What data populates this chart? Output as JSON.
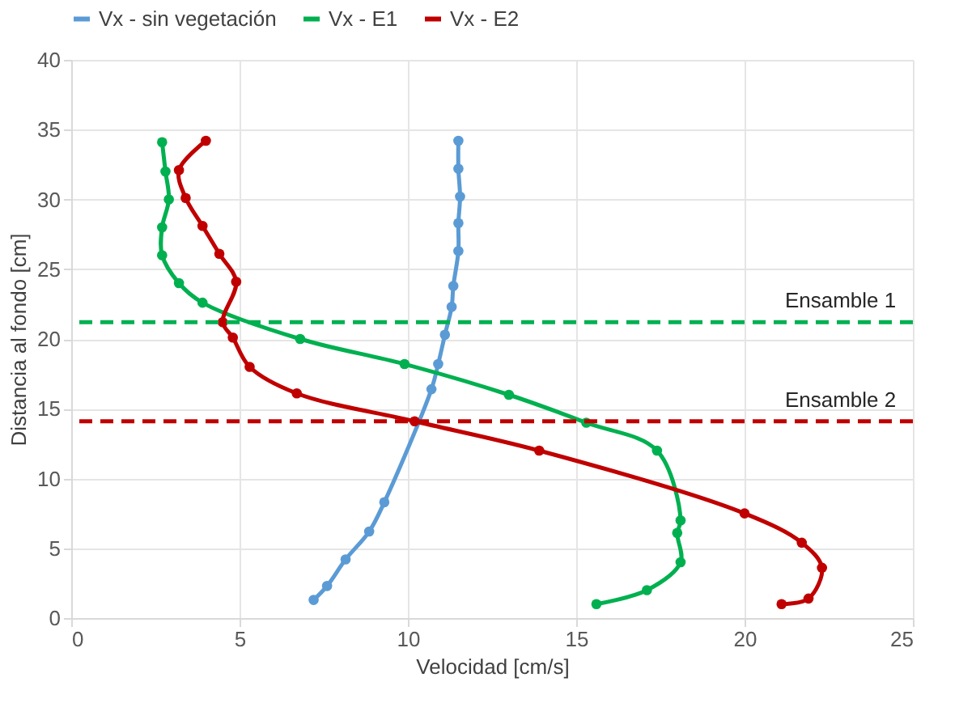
{
  "chart_data": {
    "type": "line",
    "xlabel": "Velocidad [cm/s]",
    "ylabel": "Distancia al fondo [cm]",
    "xlim": [
      0,
      25
    ],
    "xticks": [
      0,
      5,
      10,
      15,
      20,
      25
    ],
    "ylim": [
      0,
      40
    ],
    "yticks": [
      0,
      5,
      10,
      15,
      20,
      25,
      30,
      35,
      40
    ],
    "grid": true,
    "legend": "top",
    "marker": "circle",
    "line_style": "solid",
    "series": [
      {
        "name": "Vx - sin vegetación",
        "color": "#5b9bd5",
        "x": [
          11.5,
          11.5,
          11.55,
          11.5,
          11.5,
          11.35,
          11.3,
          11.1,
          10.9,
          10.7,
          9.3,
          8.85,
          8.15,
          7.6,
          7.2
        ],
        "values": [
          34.2,
          32.2,
          30.2,
          28.3,
          26.3,
          23.8,
          22.3,
          20.3,
          18.2,
          16.4,
          8.3,
          6.2,
          4.2,
          2.3,
          1.3
        ]
      },
      {
        "name": "Vx - E1",
        "color": "#00b050",
        "x": [
          2.7,
          2.8,
          2.9,
          2.7,
          2.7,
          3.2,
          3.9,
          6.8,
          9.9,
          13.0,
          15.3,
          17.4,
          18.1,
          18.0,
          18.1,
          17.1,
          15.6
        ],
        "values": [
          34.1,
          32.0,
          30.0,
          28.0,
          26.0,
          24.0,
          22.6,
          20.0,
          18.2,
          16.0,
          14.0,
          12.0,
          7.0,
          6.1,
          4.0,
          2.0,
          1.0
        ]
      },
      {
        "name": "Vx - E2",
        "color": "#c00000",
        "x": [
          4.0,
          3.2,
          3.4,
          3.9,
          4.4,
          4.9,
          4.5,
          4.8,
          5.3,
          6.7,
          10.2,
          13.9,
          20.0,
          21.7,
          22.3,
          21.9,
          21.1
        ],
        "values": [
          34.2,
          32.1,
          30.1,
          28.1,
          26.1,
          24.1,
          21.2,
          20.1,
          18.0,
          16.1,
          14.1,
          12.0,
          7.5,
          5.4,
          3.6,
          1.4,
          1.0
        ]
      }
    ],
    "ref_lines": [
      {
        "axis": "y",
        "value": 21.2,
        "label": "Ensamble 1",
        "color": "#00b050",
        "line_style": "dashed"
      },
      {
        "axis": "y",
        "value": 14.1,
        "label": "Ensamble 2",
        "color": "#c00000",
        "line_style": "dashed"
      }
    ]
  }
}
